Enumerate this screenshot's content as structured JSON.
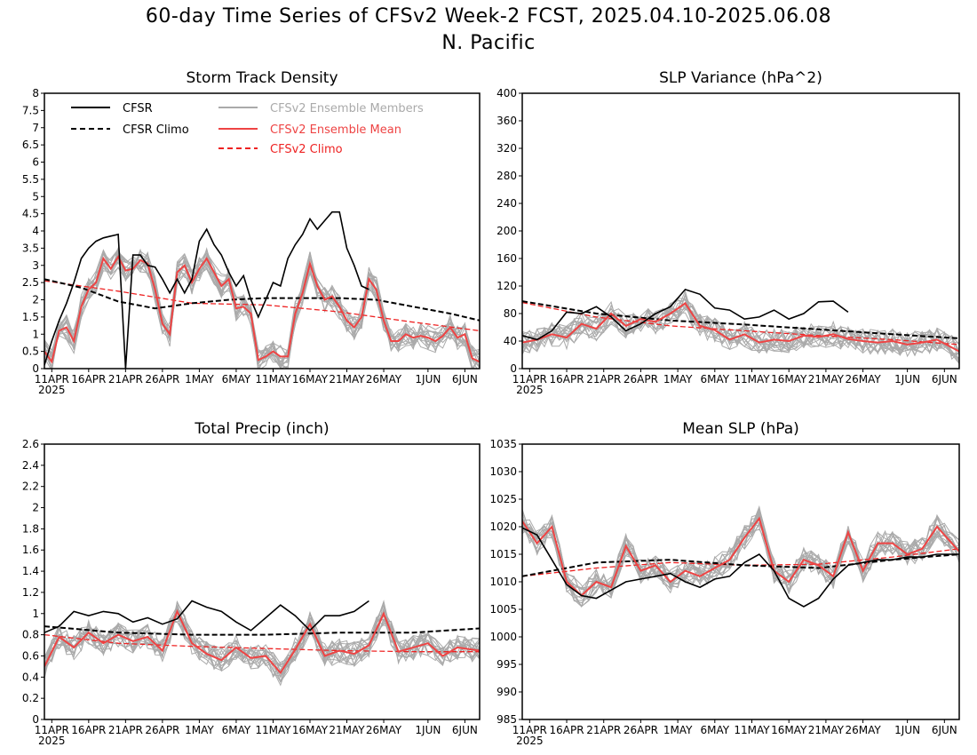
{
  "figure": {
    "title_line1": "60-day Time Series of CFSv2 Week-2 FCST, 2025.04.10-2025.06.08",
    "title_line2": "N. Pacific"
  },
  "colors": {
    "cfsr": "#000000",
    "members": "#aaaaaa",
    "ens_mean": "#ee4444",
    "cfsv2_climo": "#ee2222"
  },
  "legend": {
    "cfsr": "CFSR",
    "cfsr_climo": "CFSR Climo",
    "members": "CFSv2 Ensemble Members",
    "ens_mean": "CFSv2 Ensemble Mean",
    "cfsv2_climo": "CFSv2 Climo"
  },
  "x_ticks": [
    "11APR",
    "16APR",
    "21APR",
    "26APR",
    "1MAY",
    "6MAY",
    "11MAY",
    "16MAY",
    "21MAY",
    "26MAY",
    "1JUN",
    "6JUN"
  ],
  "x_year": "2025",
  "chart_data": [
    {
      "type": "line",
      "title": "Storm Track Density",
      "x_range": [
        "2025-04-10",
        "2025-06-08"
      ],
      "ylim": [
        0,
        8
      ],
      "y_ticks": [
        "0",
        "0.5",
        "1",
        "1.5",
        "2",
        "2.5",
        "3",
        "3.5",
        "4",
        "4.5",
        "5",
        "5.5",
        "6",
        "6.5",
        "7",
        "7.5",
        "8"
      ],
      "cfsr": {
        "x": [
          "2025-04-10",
          "2025-04-11",
          "2025-04-12",
          "2025-04-13",
          "2025-04-14",
          "2025-04-15",
          "2025-04-16",
          "2025-04-17",
          "2025-04-18",
          "2025-04-19",
          "2025-04-20",
          "2025-04-21",
          "2025-04-22",
          "2025-04-23",
          "2025-04-24",
          "2025-04-25",
          "2025-04-26",
          "2025-04-27",
          "2025-04-28",
          "2025-04-29",
          "2025-04-30",
          "2025-05-01",
          "2025-05-02",
          "2025-05-03",
          "2025-05-04",
          "2025-05-05",
          "2025-05-06",
          "2025-05-07",
          "2025-05-08",
          "2025-05-09",
          "2025-05-10",
          "2025-05-11",
          "2025-05-12",
          "2025-05-13",
          "2025-05-14",
          "2025-05-15",
          "2025-05-16",
          "2025-05-17",
          "2025-05-18",
          "2025-05-19",
          "2025-05-20",
          "2025-05-21",
          "2025-05-22",
          "2025-05-23",
          "2025-05-24"
        ],
        "y": [
          0.1,
          0.8,
          1.4,
          1.9,
          2.5,
          3.2,
          3.5,
          3.7,
          3.8,
          3.85,
          3.9,
          0.0,
          3.3,
          3.3,
          3.0,
          2.95,
          2.6,
          2.2,
          2.6,
          2.2,
          2.6,
          3.7,
          4.05,
          3.6,
          3.3,
          2.8,
          2.4,
          2.7,
          2.0,
          1.5,
          2.0,
          2.5,
          2.4,
          3.2,
          3.6,
          3.9,
          4.35,
          4.05,
          4.3,
          4.55,
          4.55,
          3.5,
          3.0,
          2.4,
          2.3
        ]
      },
      "cfsr_climo": {
        "x": [
          "2025-04-10",
          "2025-04-15",
          "2025-04-20",
          "2025-04-25",
          "2025-04-30",
          "2025-05-05",
          "2025-05-10",
          "2025-05-15",
          "2025-05-20",
          "2025-05-25",
          "2025-05-30",
          "2025-06-04",
          "2025-06-08"
        ],
        "y": [
          2.6,
          2.35,
          1.95,
          1.75,
          1.9,
          2.0,
          2.05,
          2.05,
          2.05,
          2.0,
          1.8,
          1.6,
          1.4
        ]
      },
      "ens_mean": {
        "x": [
          "2025-04-10",
          "2025-04-11",
          "2025-04-12",
          "2025-04-13",
          "2025-04-14",
          "2025-04-15",
          "2025-04-16",
          "2025-04-17",
          "2025-04-18",
          "2025-04-19",
          "2025-04-20",
          "2025-04-21",
          "2025-04-22",
          "2025-04-23",
          "2025-04-24",
          "2025-04-25",
          "2025-04-26",
          "2025-04-27",
          "2025-04-28",
          "2025-04-29",
          "2025-04-30",
          "2025-05-01",
          "2025-05-02",
          "2025-05-03",
          "2025-05-04",
          "2025-05-05",
          "2025-05-06",
          "2025-05-07",
          "2025-05-08",
          "2025-05-09",
          "2025-05-10",
          "2025-05-11",
          "2025-05-12",
          "2025-05-13",
          "2025-05-14",
          "2025-05-15",
          "2025-05-16",
          "2025-05-17",
          "2025-05-18",
          "2025-05-19",
          "2025-05-20",
          "2025-05-21",
          "2025-05-22",
          "2025-05-23",
          "2025-05-24",
          "2025-05-25",
          "2025-05-26",
          "2025-05-27",
          "2025-05-28",
          "2025-05-29",
          "2025-05-30",
          "2025-05-31",
          "2025-06-01",
          "2025-06-02",
          "2025-06-03",
          "2025-06-04",
          "2025-06-05",
          "2025-06-06",
          "2025-06-07",
          "2025-06-08"
        ],
        "y": [
          0.5,
          0.2,
          1.1,
          1.2,
          0.8,
          1.8,
          2.3,
          2.5,
          3.2,
          2.9,
          3.25,
          2.85,
          2.9,
          3.15,
          3.05,
          2.3,
          1.3,
          1.0,
          2.8,
          3.0,
          2.5,
          2.9,
          3.2,
          2.8,
          2.4,
          2.6,
          1.75,
          1.8,
          1.6,
          0.25,
          0.35,
          0.5,
          0.35,
          0.35,
          1.6,
          2.2,
          3.05,
          2.4,
          2.0,
          2.1,
          1.8,
          1.4,
          1.2,
          1.5,
          2.6,
          2.3,
          1.4,
          0.8,
          0.8,
          1.0,
          0.9,
          0.95,
          0.9,
          0.8,
          0.95,
          1.2,
          0.9,
          1.0,
          0.3,
          0.2
        ]
      },
      "cfsv2_climo": {
        "x": [
          "2025-04-10",
          "2025-04-20",
          "2025-04-30",
          "2025-05-10",
          "2025-05-20",
          "2025-05-30",
          "2025-06-08"
        ],
        "y": [
          2.55,
          2.25,
          1.9,
          1.85,
          1.65,
          1.35,
          1.1
        ]
      }
    },
    {
      "type": "line",
      "title": "SLP Variance (hPa^2)",
      "x_range": [
        "2025-04-10",
        "2025-06-08"
      ],
      "ylim": [
        0,
        400
      ],
      "y_ticks": [
        "0",
        "40",
        "80",
        "120",
        "160",
        "200",
        "240",
        "280",
        "320",
        "360",
        "400"
      ],
      "cfsr": {
        "x": [
          "2025-04-10",
          "2025-04-12",
          "2025-04-14",
          "2025-04-16",
          "2025-04-18",
          "2025-04-20",
          "2025-04-22",
          "2025-04-24",
          "2025-04-26",
          "2025-04-28",
          "2025-04-30",
          "2025-05-02",
          "2025-05-04",
          "2025-05-06",
          "2025-05-08",
          "2025-05-10",
          "2025-05-12",
          "2025-05-14",
          "2025-05-16",
          "2025-05-18",
          "2025-05-20",
          "2025-05-22",
          "2025-05-24"
        ],
        "y": [
          48,
          42,
          55,
          82,
          80,
          90,
          75,
          55,
          65,
          80,
          90,
          115,
          108,
          88,
          85,
          72,
          75,
          85,
          72,
          80,
          97,
          98,
          82
        ]
      },
      "cfsr_climo": {
        "x": [
          "2025-04-10",
          "2025-04-20",
          "2025-04-30",
          "2025-05-10",
          "2025-05-20",
          "2025-05-30",
          "2025-06-08"
        ],
        "y": [
          98,
          80,
          70,
          64,
          57,
          50,
          44
        ]
      },
      "ens_mean": {
        "x": [
          "2025-04-10",
          "2025-04-12",
          "2025-04-14",
          "2025-04-16",
          "2025-04-18",
          "2025-04-20",
          "2025-04-22",
          "2025-04-24",
          "2025-04-26",
          "2025-04-28",
          "2025-04-30",
          "2025-05-02",
          "2025-05-04",
          "2025-05-06",
          "2025-05-08",
          "2025-05-10",
          "2025-05-12",
          "2025-05-14",
          "2025-05-16",
          "2025-05-18",
          "2025-05-20",
          "2025-05-22",
          "2025-05-24",
          "2025-05-26",
          "2025-05-28",
          "2025-05-30",
          "2025-06-01",
          "2025-06-03",
          "2025-06-05",
          "2025-06-08"
        ],
        "y": [
          38,
          42,
          50,
          45,
          65,
          58,
          80,
          62,
          72,
          68,
          80,
          95,
          62,
          56,
          42,
          50,
          38,
          42,
          40,
          48,
          46,
          50,
          43,
          40,
          38,
          40,
          35,
          38,
          42,
          25
        ]
      },
      "cfsv2_climo": {
        "x": [
          "2025-04-10",
          "2025-04-20",
          "2025-04-30",
          "2025-05-10",
          "2025-05-20",
          "2025-05-30",
          "2025-06-08"
        ],
        "y": [
          96,
          75,
          62,
          55,
          48,
          42,
          35
        ]
      }
    },
    {
      "type": "line",
      "title": "Total Precip (inch)",
      "x_range": [
        "2025-04-10",
        "2025-06-08"
      ],
      "ylim": [
        0,
        2.6
      ],
      "y_ticks": [
        "0",
        "0.2",
        "0.4",
        "0.6",
        "0.8",
        "1",
        "1.2",
        "1.4",
        "1.6",
        "1.8",
        "2",
        "2.2",
        "2.4",
        "2.6"
      ],
      "cfsr": {
        "x": [
          "2025-04-10",
          "2025-04-12",
          "2025-04-14",
          "2025-04-16",
          "2025-04-18",
          "2025-04-20",
          "2025-04-22",
          "2025-04-24",
          "2025-04-26",
          "2025-04-28",
          "2025-04-30",
          "2025-05-02",
          "2025-05-04",
          "2025-05-06",
          "2025-05-08",
          "2025-05-10",
          "2025-05-12",
          "2025-05-14",
          "2025-05-16",
          "2025-05-18",
          "2025-05-20",
          "2025-05-22",
          "2025-05-24"
        ],
        "y": [
          0.82,
          0.88,
          1.02,
          0.98,
          1.02,
          1.0,
          0.92,
          0.96,
          0.9,
          0.95,
          1.12,
          1.06,
          1.02,
          0.92,
          0.84,
          0.96,
          1.08,
          0.98,
          0.84,
          0.98,
          0.98,
          1.02,
          1.12
        ]
      },
      "cfsr_climo": {
        "x": [
          "2025-04-10",
          "2025-04-20",
          "2025-04-30",
          "2025-05-10",
          "2025-05-20",
          "2025-05-30",
          "2025-06-08"
        ],
        "y": [
          0.88,
          0.82,
          0.8,
          0.8,
          0.82,
          0.82,
          0.86
        ]
      },
      "ens_mean": {
        "x": [
          "2025-04-10",
          "2025-04-12",
          "2025-04-14",
          "2025-04-16",
          "2025-04-18",
          "2025-04-20",
          "2025-04-22",
          "2025-04-24",
          "2025-04-26",
          "2025-04-28",
          "2025-04-30",
          "2025-05-02",
          "2025-05-04",
          "2025-05-06",
          "2025-05-08",
          "2025-05-10",
          "2025-05-12",
          "2025-05-14",
          "2025-05-16",
          "2025-05-18",
          "2025-05-20",
          "2025-05-22",
          "2025-05-24",
          "2025-05-26",
          "2025-05-28",
          "2025-05-30",
          "2025-06-01",
          "2025-06-03",
          "2025-06-05",
          "2025-06-08"
        ],
        "y": [
          0.5,
          0.78,
          0.68,
          0.82,
          0.72,
          0.8,
          0.74,
          0.78,
          0.65,
          1.02,
          0.72,
          0.62,
          0.56,
          0.68,
          0.58,
          0.6,
          0.44,
          0.66,
          0.9,
          0.6,
          0.65,
          0.62,
          0.7,
          1.0,
          0.64,
          0.68,
          0.72,
          0.6,
          0.68,
          0.65
        ]
      },
      "cfsv2_climo": {
        "x": [
          "2025-04-10",
          "2025-04-20",
          "2025-04-30",
          "2025-05-10",
          "2025-05-20",
          "2025-05-30",
          "2025-06-08"
        ],
        "y": [
          0.8,
          0.72,
          0.69,
          0.67,
          0.65,
          0.64,
          0.64
        ]
      }
    },
    {
      "type": "line",
      "title": "Mean SLP (hPa)",
      "x_range": [
        "2025-04-10",
        "2025-06-08"
      ],
      "ylim": [
        985,
        1035
      ],
      "y_ticks": [
        "985",
        "990",
        "995",
        "1000",
        "1005",
        "1010",
        "1015",
        "1020",
        "1025",
        "1030",
        "1035"
      ],
      "cfsr": {
        "x": [
          "2025-04-10",
          "2025-04-12",
          "2025-04-14",
          "2025-04-16",
          "2025-04-18",
          "2025-04-20",
          "2025-04-22",
          "2025-04-24",
          "2025-04-26",
          "2025-04-28",
          "2025-04-30",
          "2025-05-02",
          "2025-05-04",
          "2025-05-06",
          "2025-05-08",
          "2025-05-10",
          "2025-05-12",
          "2025-05-14",
          "2025-05-16",
          "2025-05-18",
          "2025-05-20",
          "2025-05-22",
          "2025-05-24",
          "2025-05-26",
          "2025-05-28",
          "2025-05-30",
          "2025-06-01",
          "2025-06-03",
          "2025-06-05",
          "2025-06-08"
        ],
        "y": [
          1019.8,
          1018.5,
          1014,
          1009.5,
          1007.5,
          1007,
          1008.5,
          1010,
          1010.5,
          1011,
          1011.5,
          1010,
          1009,
          1010.5,
          1011,
          1013.5,
          1015,
          1012,
          1007,
          1005.5,
          1007,
          1010.5,
          1013,
          1013.5,
          1014,
          1014,
          1014.5,
          1014.5,
          1015,
          1015
        ]
      },
      "cfsr_climo": {
        "x": [
          "2025-04-10",
          "2025-04-20",
          "2025-04-30",
          "2025-05-10",
          "2025-05-20",
          "2025-05-30",
          "2025-06-08"
        ],
        "y": [
          1011,
          1013.5,
          1014,
          1013,
          1012.5,
          1014,
          1015
        ]
      },
      "ens_mean": {
        "x": [
          "2025-04-10",
          "2025-04-12",
          "2025-04-14",
          "2025-04-16",
          "2025-04-18",
          "2025-04-20",
          "2025-04-22",
          "2025-04-24",
          "2025-04-26",
          "2025-04-28",
          "2025-04-30",
          "2025-05-02",
          "2025-05-04",
          "2025-05-06",
          "2025-05-08",
          "2025-05-10",
          "2025-05-12",
          "2025-05-14",
          "2025-05-16",
          "2025-05-18",
          "2025-05-20",
          "2025-05-22",
          "2025-05-24",
          "2025-05-26",
          "2025-05-28",
          "2025-05-30",
          "2025-06-01",
          "2025-06-03",
          "2025-06-05",
          "2025-06-08"
        ],
        "y": [
          1021,
          1017,
          1020,
          1010,
          1007.5,
          1010,
          1009,
          1016.5,
          1012,
          1013,
          1010,
          1012,
          1011,
          1012.5,
          1014,
          1018,
          1021.5,
          1012,
          1010,
          1014,
          1013,
          1011,
          1019,
          1012,
          1017,
          1017,
          1015,
          1016,
          1020,
          1015.5
        ]
      },
      "cfsv2_climo": {
        "x": [
          "2025-04-10",
          "2025-04-20",
          "2025-04-30",
          "2025-05-10",
          "2025-05-20",
          "2025-05-30",
          "2025-06-08"
        ],
        "y": [
          1011,
          1012.5,
          1013.5,
          1013,
          1013.2,
          1014.5,
          1016
        ]
      }
    }
  ]
}
